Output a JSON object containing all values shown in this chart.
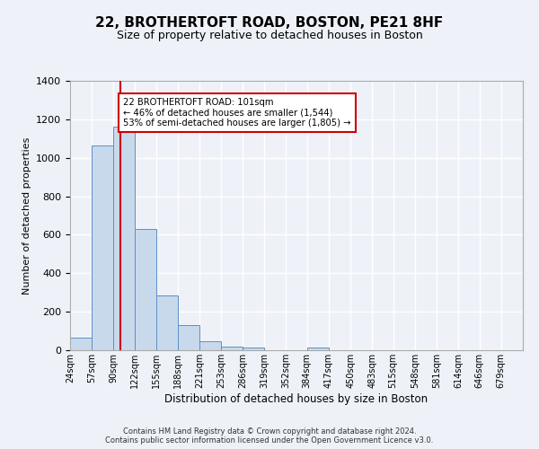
{
  "title": "22, BROTHERTOFT ROAD, BOSTON, PE21 8HF",
  "subtitle": "Size of property relative to detached houses in Boston",
  "xlabel": "Distribution of detached houses by size in Boston",
  "ylabel": "Number of detached properties",
  "bar_values": [
    65,
    1065,
    1160,
    630,
    285,
    130,
    45,
    20,
    15,
    0,
    0,
    15,
    0,
    0,
    0,
    0,
    0,
    0,
    0,
    0,
    0
  ],
  "bin_labels": [
    "24sqm",
    "57sqm",
    "90sqm",
    "122sqm",
    "155sqm",
    "188sqm",
    "221sqm",
    "253sqm",
    "286sqm",
    "319sqm",
    "352sqm",
    "384sqm",
    "417sqm",
    "450sqm",
    "483sqm",
    "515sqm",
    "548sqm",
    "581sqm",
    "614sqm",
    "646sqm",
    "679sqm"
  ],
  "bin_edges": [
    24,
    57,
    90,
    122,
    155,
    188,
    221,
    253,
    286,
    319,
    352,
    384,
    417,
    450,
    483,
    515,
    548,
    581,
    614,
    646,
    679,
    712
  ],
  "bar_color": "#c9d9ec",
  "bar_edge_color": "#5b8fc9",
  "vline_x": 101,
  "vline_color": "#cc0000",
  "annotation_text": "22 BROTHERTOFT ROAD: 101sqm\n← 46% of detached houses are smaller (1,544)\n53% of semi-detached houses are larger (1,805) →",
  "annotation_box_color": "#ffffff",
  "annotation_box_edge": "#cc0000",
  "ylim": [
    0,
    1400
  ],
  "yticks": [
    0,
    200,
    400,
    600,
    800,
    1000,
    1200,
    1400
  ],
  "footnote1": "Contains HM Land Registry data © Crown copyright and database right 2024.",
  "footnote2": "Contains public sector information licensed under the Open Government Licence v3.0.",
  "bg_color": "#eef2f8",
  "plot_bg_color": "#eef2f8"
}
